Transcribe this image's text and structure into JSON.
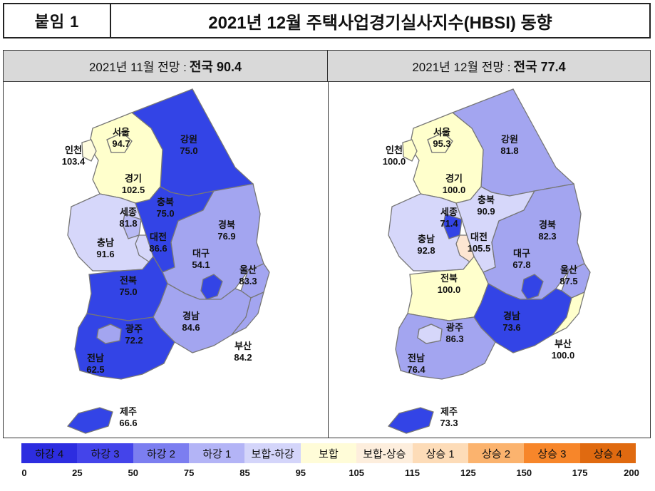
{
  "header": {
    "attachment_label": "붙임 1",
    "title": "2021년 12월 주택사업경기실사지수(HBSI) 동향"
  },
  "panels": [
    {
      "title_prefix": "2021년 11월 전망 :",
      "title_bold": "전국 90.4",
      "regions": {
        "seoul": {
          "name": "서울",
          "value": "94.7",
          "color": "#ffffcc"
        },
        "incheon": {
          "name": "인천",
          "value": "103.4",
          "color": "#fffde0"
        },
        "gyeonggi": {
          "name": "경기",
          "value": "102.5",
          "color": "#ffffcc"
        },
        "gangwon": {
          "name": "강원",
          "value": "75.0",
          "color": "#3344e6"
        },
        "chungbuk": {
          "name": "충북",
          "value": "75.0",
          "color": "#3344e6"
        },
        "sejong": {
          "name": "세종",
          "value": "81.8",
          "color": "#b8baf4"
        },
        "chungnam": {
          "name": "충남",
          "value": "91.6",
          "color": "#d6d7fa"
        },
        "daejeon": {
          "name": "대전",
          "value": "86.6",
          "color": "#d6d7fa"
        },
        "gyeongbuk": {
          "name": "경북",
          "value": "76.9",
          "color": "#a3a5f0"
        },
        "daegu": {
          "name": "대구",
          "value": "54.1",
          "color": "#3344e6"
        },
        "ulsan": {
          "name": "울산",
          "value": "83.3",
          "color": "#a3a5f0"
        },
        "jeonbuk": {
          "name": "전북",
          "value": "75.0",
          "color": "#3344e6"
        },
        "gyeongnam": {
          "name": "경남",
          "value": "84.6",
          "color": "#a3a5f0"
        },
        "gwangju": {
          "name": "광주",
          "value": "72.2",
          "color": "#a3a5f0"
        },
        "jeonnam": {
          "name": "전남",
          "value": "62.5",
          "color": "#3344e6"
        },
        "busan": {
          "name": "부산",
          "value": "84.2",
          "color": "#a3a5f0"
        },
        "jeju": {
          "name": "제주",
          "value": "66.6",
          "color": "#3344e6"
        }
      }
    },
    {
      "title_prefix": "2021년 12월 전망 :",
      "title_bold": "전국 77.4",
      "regions": {
        "seoul": {
          "name": "서울",
          "value": "95.3",
          "color": "#ffffcc"
        },
        "incheon": {
          "name": "인천",
          "value": "100.0",
          "color": "#ffffcc"
        },
        "gyeonggi": {
          "name": "경기",
          "value": "100.0",
          "color": "#ffffcc"
        },
        "gangwon": {
          "name": "강원",
          "value": "81.8",
          "color": "#a3a5f0"
        },
        "chungbuk": {
          "name": "충북",
          "value": "90.9",
          "color": "#d6d7fa"
        },
        "sejong": {
          "name": "세종",
          "value": "71.4",
          "color": "#3344e6"
        },
        "chungnam": {
          "name": "충남",
          "value": "92.8",
          "color": "#d6d7fa"
        },
        "daejeon": {
          "name": "대전",
          "value": "105.5",
          "color": "#fde6d2"
        },
        "gyeongbuk": {
          "name": "경북",
          "value": "82.3",
          "color": "#a3a5f0"
        },
        "daegu": {
          "name": "대구",
          "value": "67.8",
          "color": "#3344e6"
        },
        "ulsan": {
          "name": "울산",
          "value": "87.5",
          "color": "#a3a5f0"
        },
        "jeonbuk": {
          "name": "전북",
          "value": "100.0",
          "color": "#ffffcc"
        },
        "gyeongnam": {
          "name": "경남",
          "value": "73.6",
          "color": "#3344e6"
        },
        "gwangju": {
          "name": "광주",
          "value": "86.3",
          "color": "#d6d7fa"
        },
        "jeonnam": {
          "name": "전남",
          "value": "76.4",
          "color": "#a3a5f0"
        },
        "busan": {
          "name": "부산",
          "value": "100.0",
          "color": "#ffffcc"
        },
        "jeju": {
          "name": "제주",
          "value": "73.3",
          "color": "#3344e6"
        }
      }
    }
  ],
  "legend": {
    "items": [
      {
        "label": "하강 4",
        "color": "#2d2de0"
      },
      {
        "label": "하강 3",
        "color": "#4444ea"
      },
      {
        "label": "하강 2",
        "color": "#7c7ef0"
      },
      {
        "label": "하강 1",
        "color": "#b3b4f6"
      },
      {
        "label": "보합-하강",
        "color": "#d4d5fa"
      },
      {
        "label": "보합",
        "color": "#fffcd8"
      },
      {
        "label": "보합-상승",
        "color": "#fdeedd"
      },
      {
        "label": "상승 1",
        "color": "#fddcb8"
      },
      {
        "label": "상승 2",
        "color": "#fbb36e"
      },
      {
        "label": "상승 3",
        "color": "#f7862a"
      },
      {
        "label": "상승 4",
        "color": "#e06a10"
      }
    ],
    "ticks": [
      "0",
      "25",
      "50",
      "75",
      "85",
      "95",
      "105",
      "115",
      "125",
      "150",
      "175",
      "200"
    ]
  }
}
